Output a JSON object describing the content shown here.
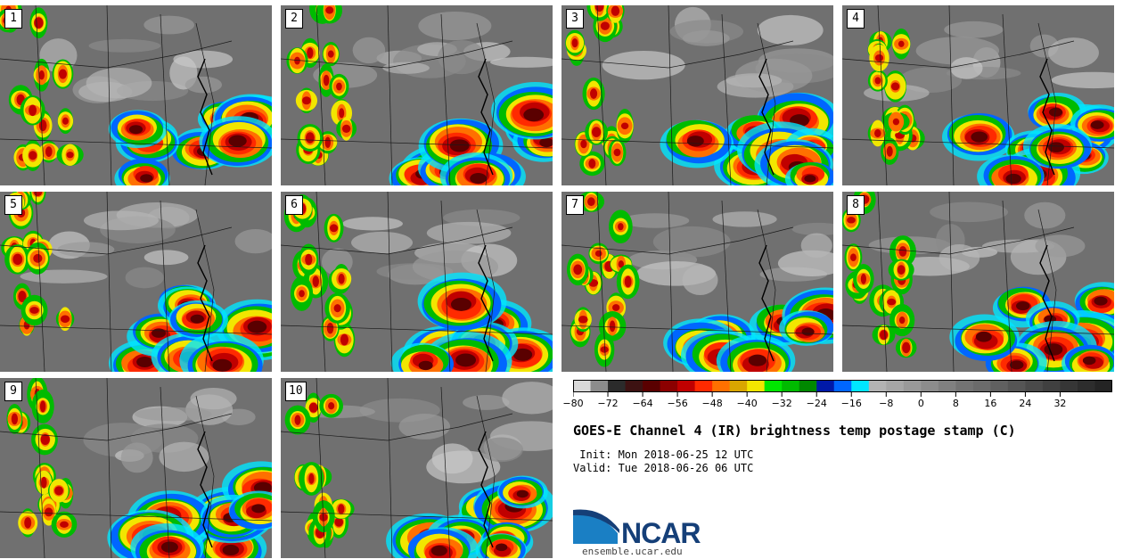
{
  "panels": [
    {
      "label": "1"
    },
    {
      "label": "2"
    },
    {
      "label": "3"
    },
    {
      "label": "4"
    },
    {
      "label": "5"
    },
    {
      "label": "6"
    },
    {
      "label": "7"
    },
    {
      "label": "8"
    },
    {
      "label": "9"
    },
    {
      "label": "10"
    }
  ],
  "colorbar": {
    "colors": [
      "#d9d9d9",
      "#8c8c8c",
      "#2b2b2b",
      "#3d1212",
      "#5a0000",
      "#8b0000",
      "#c00000",
      "#ff2a00",
      "#ff7000",
      "#d9a600",
      "#f2e600",
      "#00e600",
      "#00bb00",
      "#008800",
      "#0019a8",
      "#0066ff",
      "#00e6ff",
      "#b3b3b3",
      "#a6a6a6",
      "#999999",
      "#8c8c8c",
      "#808080",
      "#737373",
      "#6b6b6b",
      "#606060",
      "#555555",
      "#4a4a4a",
      "#404040",
      "#363636",
      "#2d2d2d",
      "#242424"
    ],
    "ticks": [
      "−80",
      "−72",
      "−64",
      "−56",
      "−48",
      "−40",
      "−32",
      "−24",
      "−16",
      "−8",
      "0",
      "8",
      "16",
      "24",
      "32"
    ]
  },
  "title": "GOES-E Channel 4 (IR) brightness temp postage stamp (C)",
  "init": " Init: Mon 2018-06-25 12 UTC",
  "valid": "Valid: Tue 2018-06-26 06 UTC",
  "logo": {
    "name": "NCAR",
    "url": "ensemble.ucar.edu"
  }
}
